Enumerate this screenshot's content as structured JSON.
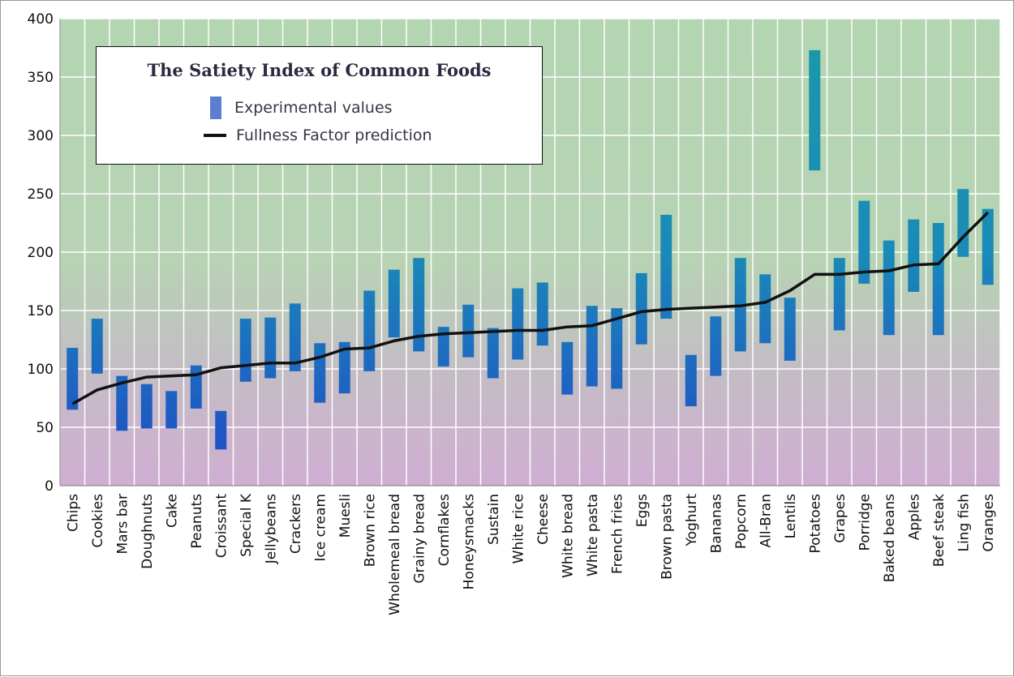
{
  "chart_data": {
    "type": "bar",
    "title": "The Satiety Index of Common Foods",
    "xlabel": "",
    "ylabel": "",
    "ylim": [
      0,
      400
    ],
    "yticks": [
      0,
      50,
      100,
      150,
      200,
      250,
      300,
      350,
      400
    ],
    "legend": {
      "position": "top-left",
      "entries": [
        {
          "label": "Experimental values",
          "kind": "bar",
          "color": "#5b7fd0"
        },
        {
          "label": "Fullness Factor prediction",
          "kind": "line",
          "color": "#111111"
        }
      ]
    },
    "categories": [
      "Chips",
      "Cookies",
      "Mars bar",
      "Doughnuts",
      "Cake",
      "Peanuts",
      "Croissant",
      "Special K",
      "Jellybeans",
      "Crackers",
      "Ice cream",
      "Muesli",
      "Brown rice",
      "Wholemeal bread",
      "Grainy bread",
      "Cornflakes",
      "Honeysmacks",
      "Sustain",
      "White rice",
      "Cheese",
      "White bread",
      "White pasta",
      "French fries",
      "Eggs",
      "Brown pasta",
      "Yoghurt",
      "Bananas",
      "Popcorn",
      "All-Bran",
      "Lentils",
      "Potatoes",
      "Grapes",
      "Porridge",
      "Baked beans",
      "Apples",
      "Beef steak",
      "Ling fish",
      "Oranges"
    ],
    "series": [
      {
        "name": "Experimental values",
        "type": "range",
        "low": [
          65,
          96,
          47,
          49,
          49,
          66,
          31,
          89,
          92,
          98,
          71,
          79,
          98,
          127,
          115,
          102,
          110,
          92,
          108,
          120,
          78,
          85,
          83,
          121,
          143,
          68,
          94,
          115,
          122,
          107,
          270,
          133,
          173,
          129,
          166,
          129,
          196,
          172
        ],
        "high": [
          118,
          143,
          94,
          87,
          81,
          103,
          64,
          143,
          144,
          156,
          122,
          123,
          167,
          185,
          195,
          136,
          155,
          135,
          169,
          174,
          123,
          154,
          152,
          182,
          232,
          112,
          145,
          195,
          181,
          161,
          373,
          195,
          244,
          210,
          228,
          225,
          254,
          237
        ]
      },
      {
        "name": "Fullness Factor prediction",
        "type": "line",
        "values": [
          70,
          82,
          88,
          93,
          94,
          95,
          101,
          103,
          105,
          105,
          110,
          117,
          118,
          124,
          128,
          130,
          131,
          132,
          133,
          133,
          136,
          137,
          143,
          149,
          151,
          152,
          153,
          154,
          157,
          167,
          181,
          181,
          183,
          184,
          189,
          190,
          213,
          234
        ]
      }
    ]
  }
}
